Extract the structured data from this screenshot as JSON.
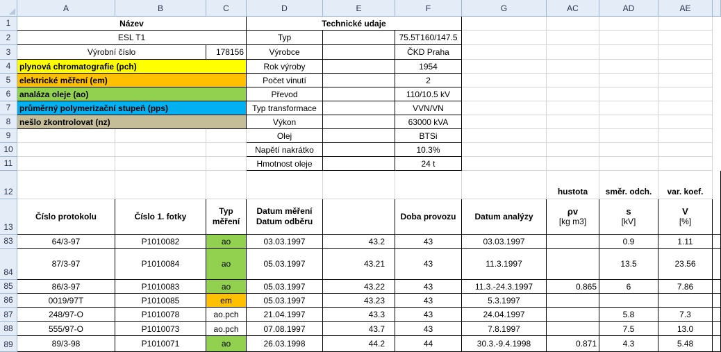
{
  "columns": [
    "A",
    "B",
    "C",
    "D",
    "E",
    "F",
    "G",
    "AC",
    "AD",
    "AE"
  ],
  "rows": [
    "1",
    "2",
    "3",
    "4",
    "5",
    "6",
    "7",
    "8",
    "9",
    "10",
    "11",
    "12",
    "13",
    "83",
    "84",
    "85",
    "86",
    "87",
    "88",
    "89"
  ],
  "info": {
    "nazev_header": "Název",
    "tech_header": "Technické udaje",
    "name": "ESL T1",
    "serial_label": "Výrobní číslo",
    "serial_value": "178156"
  },
  "legend": [
    {
      "label": "plynová chromatografie (pch)",
      "color": "#ffff00"
    },
    {
      "label": "elektrické měření (em)",
      "color": "#ffc000"
    },
    {
      "label": "analáza oleje (ao)",
      "color": "#92d050"
    },
    {
      "label": "průměrný polymerizační stupeň (pps)",
      "color": "#00b0f0"
    },
    {
      "label": "nešlo zkontrolovat (nz)",
      "color": "#c4bd97"
    }
  ],
  "tech": [
    {
      "label": "Typ",
      "value": "75.5T160/147.5"
    },
    {
      "label": "Výrobce",
      "value": "ČKD Praha"
    },
    {
      "label": "Rok výroby",
      "value": "1954"
    },
    {
      "label": "Počet vinutí",
      "value": "2"
    },
    {
      "label": "Převod",
      "value": "110/10.5 kV"
    },
    {
      "label": "Typ transformace",
      "value": "VVN/VN"
    },
    {
      "label": "Výkon",
      "value": "63000 kVA"
    },
    {
      "label": "Olej",
      "value": "BTSi"
    },
    {
      "label": "Napětí nakrátko",
      "value": "10.3%"
    },
    {
      "label": "Hmotnost oleje",
      "value": "24 t"
    }
  ],
  "group_headers": {
    "ac": "hustota",
    "ad": "směr. odch.",
    "ae": "var. koef."
  },
  "table_headers": {
    "protokol": "Číslo protokolu",
    "fotka": "Číslo 1. fotky",
    "typ_1": "Typ",
    "typ_2": "měření",
    "datum_1": "Datum měření",
    "datum_2": "Datum odběru",
    "e": "",
    "doba": "Doba provozu",
    "analyza": "Datum analýzy",
    "ac_sym": "ρv",
    "ac_unit": "[kg m3]",
    "ad_sym": "s",
    "ad_unit": "[kV]",
    "ae_sym": "V",
    "ae_unit": "[%]"
  },
  "records": [
    {
      "protokol": "64/3-97",
      "fotka": "P1010082",
      "typ": "ao",
      "typ_color": "#92d050",
      "datum": "03.03.1997",
      "e": "43.2",
      "doba": "43",
      "analyza": "03.03.1997",
      "ac": "",
      "ad": "0.9",
      "ae": "1.11"
    },
    {
      "protokol": "87/3-97",
      "fotka": "P1010084",
      "typ": "ao",
      "typ_color": "#92d050",
      "datum": "05.03.1997",
      "e": "43.21",
      "doba": "43",
      "analyza": "11.3.1997",
      "ac": "",
      "ad": "13.5",
      "ae": "23.56"
    },
    {
      "protokol": "86/3-97",
      "fotka": "P1010083",
      "typ": "ao",
      "typ_color": "#92d050",
      "datum": "05.03.1997",
      "e": "43.22",
      "doba": "43",
      "analyza": "11.3.-24.3.1997",
      "ac": "0.865",
      "ad": "6",
      "ae": "7.86"
    },
    {
      "protokol": "0019/97T",
      "fotka": "P1010085",
      "typ": "em",
      "typ_color": "#ffc000",
      "datum": "05.03.1997",
      "e": "43.23",
      "doba": "43",
      "analyza": "5.3.1997",
      "ac": "",
      "ad": "",
      "ae": ""
    },
    {
      "protokol": "248/97-O",
      "fotka": "P1010078",
      "typ": "ao.pch",
      "typ_color": "",
      "datum": "21.04.1997",
      "e": "43.3",
      "doba": "43",
      "analyza": "24.04.1997",
      "ac": "",
      "ad": "5.8",
      "ae": "7.3"
    },
    {
      "protokol": "555/97-O",
      "fotka": "P1010073",
      "typ": "ao.pch",
      "typ_color": "",
      "datum": "07.08.1997",
      "e": "43.7",
      "doba": "43",
      "analyza": "7.8.1997",
      "ac": "",
      "ad": "7.5",
      "ae": "13.0"
    },
    {
      "protokol": "89/3-98",
      "fotka": "P1010071",
      "typ": "ao",
      "typ_color": "#92d050",
      "datum": "26.03.1998",
      "e": "44.2",
      "doba": "44",
      "analyza": "30.3.-9.4.1998",
      "ac": "0.871",
      "ad": "4.3",
      "ae": "5.48"
    }
  ]
}
